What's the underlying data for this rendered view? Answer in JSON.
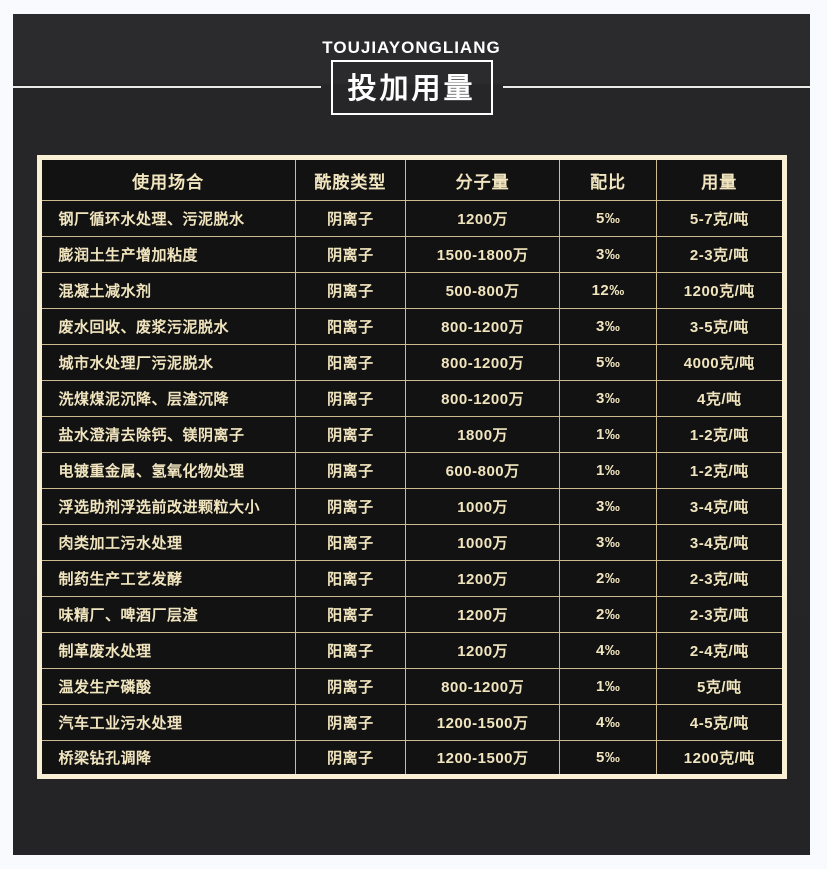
{
  "header": {
    "brand_text": "TOUJIAYONGLIANG",
    "title": "投加用量"
  },
  "table": {
    "column_keys": [
      "usage",
      "amide_type",
      "molecular_weight",
      "ratio",
      "dosage"
    ],
    "headers": [
      "使用场合",
      "酰胺类型",
      "分子量",
      "配比",
      "用量"
    ],
    "rows": [
      {
        "usage": "钢厂循环水处理、污泥脱水",
        "amide_type": "阴离子",
        "molecular_weight": "1200万",
        "ratio": "5‰",
        "dosage": "5-7克/吨"
      },
      {
        "usage": "膨润土生产增加粘度",
        "amide_type": "阴离子",
        "molecular_weight": "1500-1800万",
        "ratio": "3‰",
        "dosage": "2-3克/吨"
      },
      {
        "usage": "混凝土减水剂",
        "amide_type": "阴离子",
        "molecular_weight": "500-800万",
        "ratio": "12‰",
        "dosage": "1200克/吨"
      },
      {
        "usage": "废水回收、废浆污泥脱水",
        "amide_type": "阳离子",
        "molecular_weight": "800-1200万",
        "ratio": "3‰",
        "dosage": "3-5克/吨"
      },
      {
        "usage": "城市水处理厂污泥脱水",
        "amide_type": "阳离子",
        "molecular_weight": "800-1200万",
        "ratio": "5‰",
        "dosage": "4000克/吨"
      },
      {
        "usage": "洗煤煤泥沉降、层渣沉降",
        "amide_type": "阴离子",
        "molecular_weight": "800-1200万",
        "ratio": "3‰",
        "dosage": "4克/吨"
      },
      {
        "usage": "盐水澄清去除钙、镁阴离子",
        "amide_type": "阴离子",
        "molecular_weight": "1800万",
        "ratio": "1‰",
        "dosage": "1-2克/吨"
      },
      {
        "usage": "电镀重金属、氢氧化物处理",
        "amide_type": "阴离子",
        "molecular_weight": "600-800万",
        "ratio": "1‰",
        "dosage": "1-2克/吨"
      },
      {
        "usage": "浮选助剂浮选前改进颗粒大小",
        "amide_type": "阴离子",
        "molecular_weight": "1000万",
        "ratio": "3‰",
        "dosage": "3-4克/吨"
      },
      {
        "usage": "肉类加工污水处理",
        "amide_type": "阳离子",
        "molecular_weight": "1000万",
        "ratio": "3‰",
        "dosage": "3-4克/吨"
      },
      {
        "usage": "制药生产工艺发酵",
        "amide_type": "阳离子",
        "molecular_weight": "1200万",
        "ratio": "2‰",
        "dosage": "2-3克/吨"
      },
      {
        "usage": "味精厂、啤酒厂层渣",
        "amide_type": "阳离子",
        "molecular_weight": "1200万",
        "ratio": "2‰",
        "dosage": "2-3克/吨"
      },
      {
        "usage": "制革废水处理",
        "amide_type": "阳离子",
        "molecular_weight": "1200万",
        "ratio": "4‰",
        "dosage": "2-4克/吨"
      },
      {
        "usage": "温发生产磷酸",
        "amide_type": "阴离子",
        "molecular_weight": "800-1200万",
        "ratio": "1‰",
        "dosage": "5克/吨"
      },
      {
        "usage": "汽车工业污水处理",
        "amide_type": "阴离子",
        "molecular_weight": "1200-1500万",
        "ratio": "4‰",
        "dosage": "4-5克/吨"
      },
      {
        "usage": "桥梁钻孔调降",
        "amide_type": "阴离子",
        "molecular_weight": "1200-1500万",
        "ratio": "5‰",
        "dosage": "1200克/吨"
      }
    ]
  },
  "colors": {
    "panel_background": "#28282a",
    "cell_background": "#121212",
    "table_outer_border": "#f8efd5",
    "cell_border": "#cdbc8f",
    "table_text_cream": "#f1e5bf",
    "title_white": "#ffffff",
    "page_background": "#f9fafd"
  }
}
